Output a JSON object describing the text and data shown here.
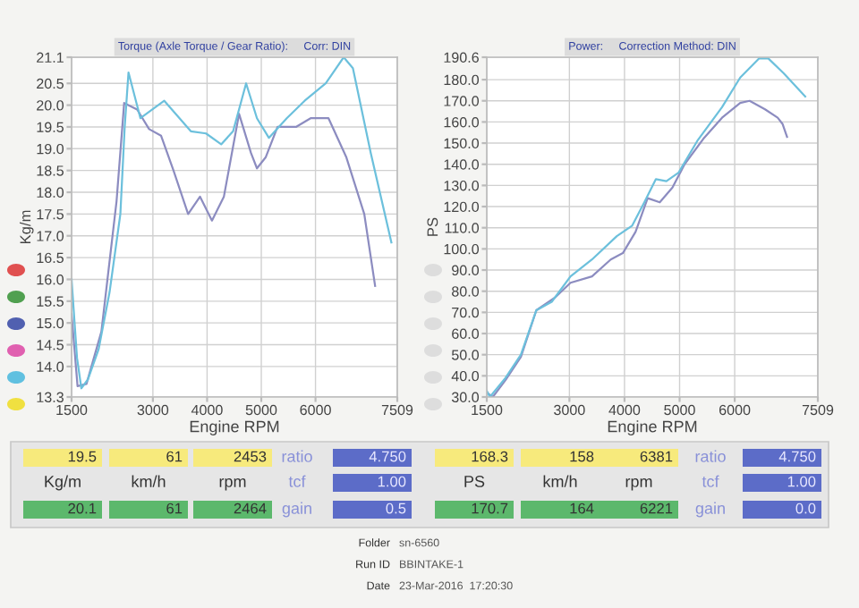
{
  "chart_data": [
    {
      "type": "line",
      "title": "Torque (Axle Torque / Gear Ratio):     Corr: DIN",
      "xlabel": "Engine RPM",
      "ylabel": "Kg/m",
      "xlim": [
        1500,
        7509
      ],
      "xticks": [
        1500,
        3000,
        4000,
        5000,
        6000,
        7509
      ],
      "ylim": [
        13.3,
        21.1
      ],
      "yticks": [
        13.3,
        {
          "value": 14,
          "label": "14.0"
        },
        14.5,
        {
          "value": 15,
          "label": "15.0"
        },
        15.5,
        {
          "value": 16,
          "label": "16.0"
        },
        16.5,
        {
          "value": 17,
          "label": "17.0"
        },
        17.5,
        {
          "value": 18,
          "label": "18.0"
        },
        18.5,
        {
          "value": 19,
          "label": "19.0"
        },
        19.5,
        {
          "value": 20,
          "label": "20.0"
        },
        20.5,
        21.1
      ],
      "grid": true,
      "series": [
        {
          "color": "#8c8cc0",
          "x": [
            1500,
            1610,
            1775,
            2050,
            2330,
            2470,
            2710,
            2930,
            3150,
            3380,
            3650,
            3870,
            4090,
            4310,
            4590,
            4810,
            4920,
            5080,
            5300,
            5640,
            5910,
            6240,
            6570,
            6900,
            7100
          ],
          "values": [
            15.2,
            13.55,
            13.6,
            14.8,
            17.8,
            20.05,
            19.9,
            19.45,
            19.3,
            18.5,
            17.5,
            17.9,
            17.35,
            17.9,
            19.8,
            18.9,
            18.55,
            18.8,
            19.5,
            19.5,
            19.7,
            19.7,
            18.8,
            17.5,
            15.85
          ]
        },
        {
          "color": "#6cc0dc",
          "x": [
            1500,
            1600,
            1680,
            1800,
            2000,
            2200,
            2400,
            2480,
            2550,
            2770,
            3210,
            3700,
            3980,
            4260,
            4480,
            4720,
            4920,
            5140,
            5470,
            5800,
            6190,
            6520,
            6690,
            7020,
            7400
          ],
          "values": [
            16.0,
            14.2,
            13.5,
            13.7,
            14.4,
            15.7,
            17.5,
            19.5,
            20.75,
            19.7,
            20.1,
            19.4,
            19.35,
            19.1,
            19.4,
            20.5,
            19.7,
            19.25,
            19.7,
            20.1,
            20.5,
            21.1,
            20.85,
            18.9,
            16.85
          ]
        }
      ]
    },
    {
      "type": "line",
      "title": "Power:     Correction Method: DIN",
      "xlabel": "Engine RPM",
      "ylabel": "PS",
      "xlim": [
        1500,
        7509
      ],
      "xticks": [
        1500,
        3000,
        4000,
        5000,
        6000,
        7509
      ],
      "ylim": [
        30,
        190.6
      ],
      "yticks": [
        {
          "value": 30,
          "label": "30.0"
        },
        {
          "value": 40,
          "label": "40.0"
        },
        {
          "value": 50,
          "label": "50.0"
        },
        {
          "value": 60,
          "label": "60.0"
        },
        {
          "value": 70,
          "label": "70.0"
        },
        {
          "value": 80,
          "label": "80.0"
        },
        {
          "value": 90,
          "label": "90.0"
        },
        {
          "value": 100,
          "label": "100.0"
        },
        {
          "value": 110,
          "label": "110.0"
        },
        {
          "value": 120,
          "label": "120.0"
        },
        {
          "value": 130,
          "label": "130.0"
        },
        {
          "value": 140,
          "label": "140.0"
        },
        {
          "value": 150,
          "label": "150.0"
        },
        {
          "value": 160,
          "label": "160.0"
        },
        {
          "value": 170,
          "label": "170.0"
        },
        {
          "value": 180,
          "label": "180.0"
        },
        190.6
      ],
      "grid": true,
      "series": [
        {
          "color": "#8c8cc0",
          "x": [
            1500,
            1610,
            1840,
            2120,
            2400,
            2740,
            3020,
            3410,
            3750,
            3970,
            4200,
            4420,
            4640,
            4870,
            5090,
            5430,
            5770,
            6100,
            6270,
            6550,
            6780,
            6870,
            6950
          ],
          "values": [
            32,
            30,
            38,
            49,
            71,
            77,
            84,
            87,
            95,
            98,
            108,
            124,
            122,
            129,
            140,
            152,
            162,
            169,
            170,
            166,
            162,
            159,
            153
          ]
        },
        {
          "color": "#6cc0dc",
          "x": [
            1500,
            1556,
            1840,
            2120,
            2400,
            2680,
            3020,
            3410,
            3860,
            4140,
            4360,
            4570,
            4760,
            4980,
            5320,
            5770,
            6100,
            6440,
            6610,
            6890,
            7280
          ],
          "values": [
            33,
            30,
            39,
            50,
            71,
            75,
            87,
            95,
            106,
            111,
            122,
            133,
            132,
            136,
            151,
            167,
            181,
            190,
            190,
            183,
            172
          ]
        }
      ]
    },
    {
      "type": "other",
      "annotations": [
        "19.5",
        "61",
        "2453",
        "ratio",
        "4.750",
        "168.3",
        "158",
        "6381",
        "ratio",
        "4.750",
        "Kg/m",
        "km/h",
        "rpm",
        "tcf",
        "1.00",
        "PS",
        "km/h",
        "rpm",
        "tcf",
        "1.00",
        "20.1",
        "61",
        "2464",
        "gain",
        "0.5",
        "170.7",
        "164",
        "6221",
        "gain",
        "0.0",
        "Folder",
        "sn-6560",
        "Run ID",
        "BBINTAKE-1",
        "Date",
        "23-Mar-2016  17:20:30"
      ]
    }
  ]
}
